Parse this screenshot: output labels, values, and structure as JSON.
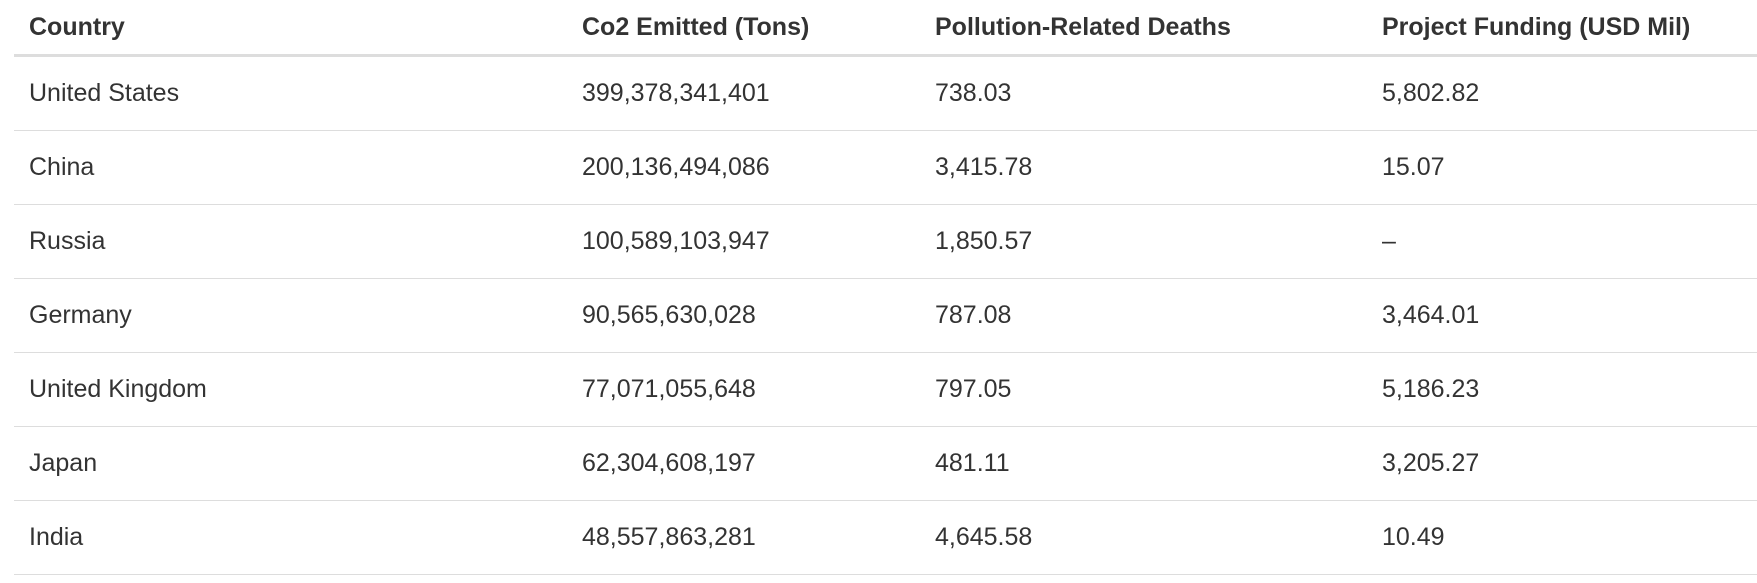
{
  "table": {
    "columns": [
      "Country",
      "Co2 Emitted (Tons)",
      "Pollution-Related Deaths",
      "Project Funding (USD Mil)"
    ],
    "rows": [
      [
        "United States",
        "399,378,341,401",
        "738.03",
        "5,802.82"
      ],
      [
        "China",
        "200,136,494,086",
        "3,415.78",
        "15.07"
      ],
      [
        "Russia",
        "100,589,103,947",
        "1,850.57",
        "–"
      ],
      [
        "Germany",
        "90,565,630,028",
        "787.08",
        "3,464.01"
      ],
      [
        "United Kingdom",
        "77,071,055,648",
        "797.05",
        "5,186.23"
      ],
      [
        "Japan",
        "62,304,608,197",
        "481.11",
        "3,205.27"
      ],
      [
        "India",
        "48,557,863,281",
        "4,645.58",
        "10.49"
      ]
    ]
  }
}
